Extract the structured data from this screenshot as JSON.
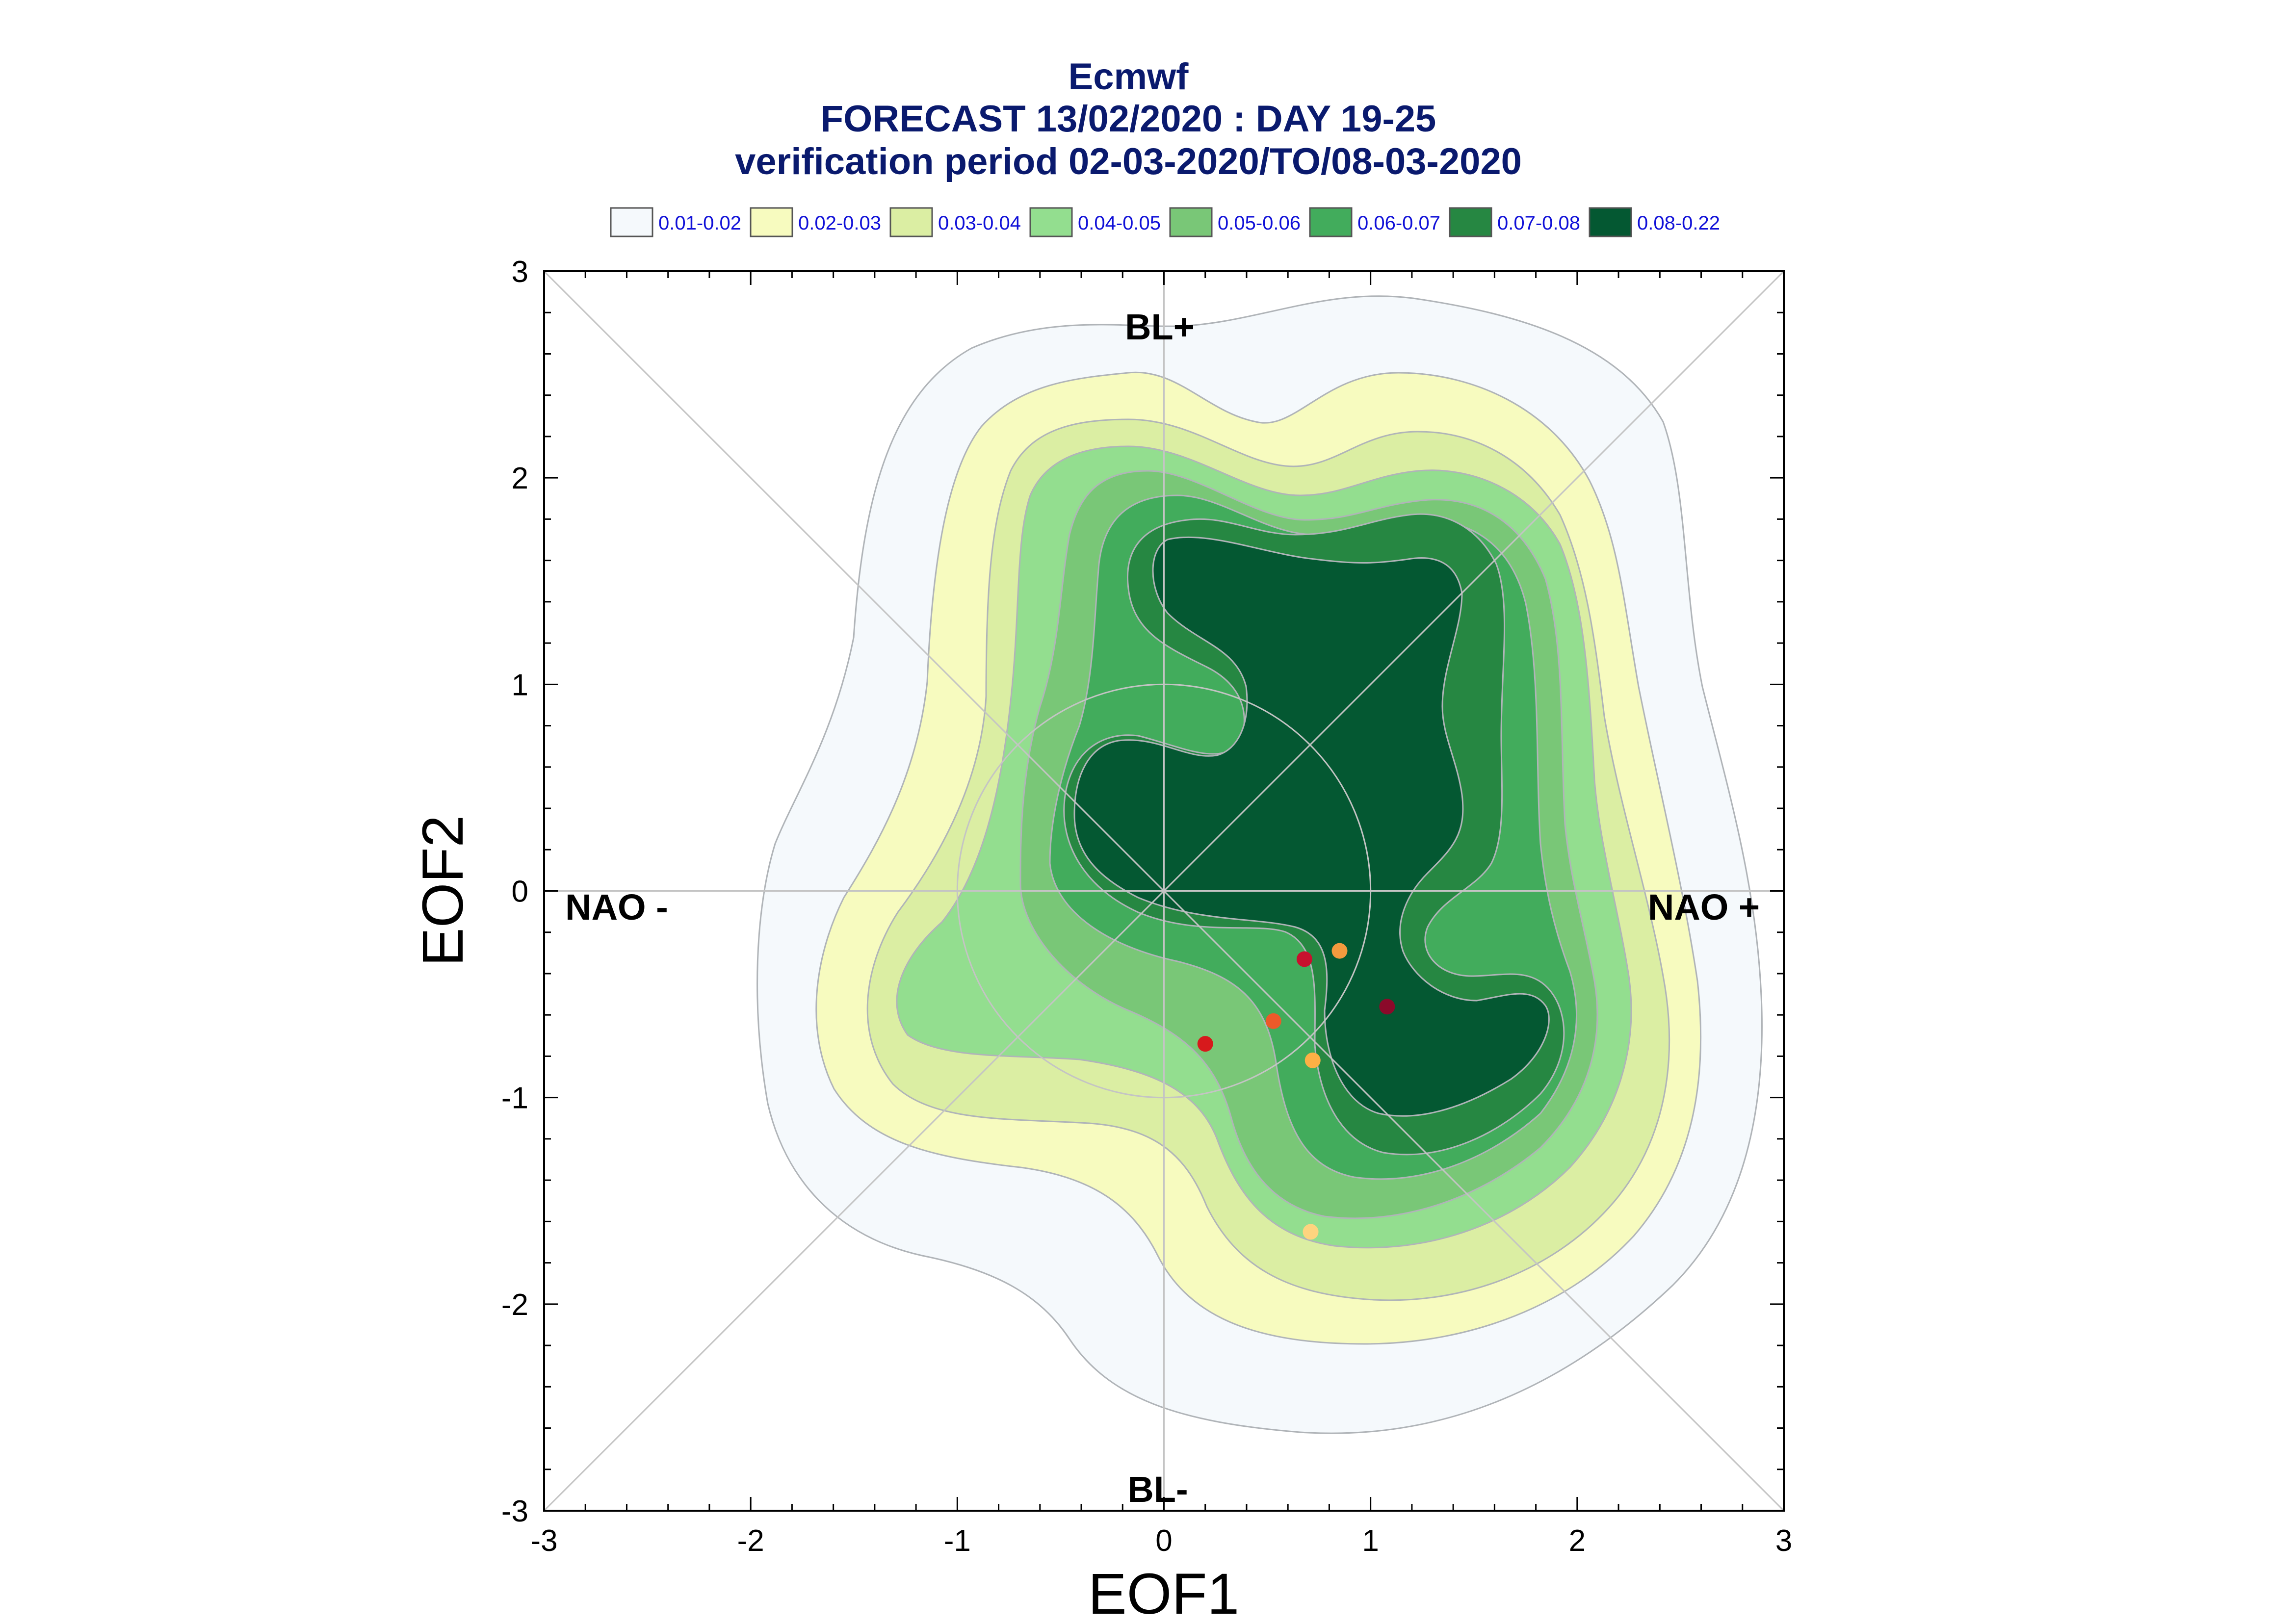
{
  "title": {
    "line1": "Ecmwf",
    "line2": "FORECAST 13/02/2020 : DAY 19-25",
    "line3": "verification period 02-03-2020/TO/08-03-2020"
  },
  "legend": [
    {
      "label": "0.01-0.02",
      "color": "#f5f9fc"
    },
    {
      "label": "0.02-0.03",
      "color": "#f7fbbf"
    },
    {
      "label": "0.03-0.04",
      "color": "#dbeea3"
    },
    {
      "label": "0.04-0.05",
      "color": "#93de8f"
    },
    {
      "label": "0.05-0.06",
      "color": "#79c777"
    },
    {
      "label": "0.06-0.07",
      "color": "#42ac5c"
    },
    {
      "label": "0.07-0.08",
      "color": "#268742"
    },
    {
      "label": "0.08-0.22",
      "color": "#045832"
    }
  ],
  "regimes": {
    "top": "BL+",
    "bottom": "BL-",
    "left": "NAO -",
    "right": "NAO +"
  },
  "chart_data": {
    "type": "scatter",
    "xlabel": "EOF1",
    "ylabel": "EOF2",
    "xlim": [
      -3,
      3
    ],
    "ylim": [
      -3,
      3
    ],
    "xticks": [
      "-3",
      "-2",
      "-1",
      "0",
      "1",
      "2",
      "3"
    ],
    "yticks": [
      "-3",
      "-2",
      "-1",
      "0",
      "1",
      "2",
      "3"
    ],
    "reference_circle_radius": 1,
    "density_levels": [
      0.01,
      0.02,
      0.03,
      0.04,
      0.05,
      0.06,
      0.07,
      0.08,
      0.22
    ],
    "points": [
      {
        "x": 0.68,
        "y": -0.33,
        "color": "#c8102e"
      },
      {
        "x": 0.85,
        "y": -0.29,
        "color": "#f39a3e"
      },
      {
        "x": 1.08,
        "y": -0.56,
        "color": "#8b0a2a"
      },
      {
        "x": 0.53,
        "y": -0.63,
        "color": "#ec5a2a"
      },
      {
        "x": 0.2,
        "y": -0.74,
        "color": "#d7191c"
      },
      {
        "x": 0.72,
        "y": -0.82,
        "color": "#fdb045"
      },
      {
        "x": 0.71,
        "y": -1.65,
        "color": "#fed47f"
      }
    ]
  }
}
